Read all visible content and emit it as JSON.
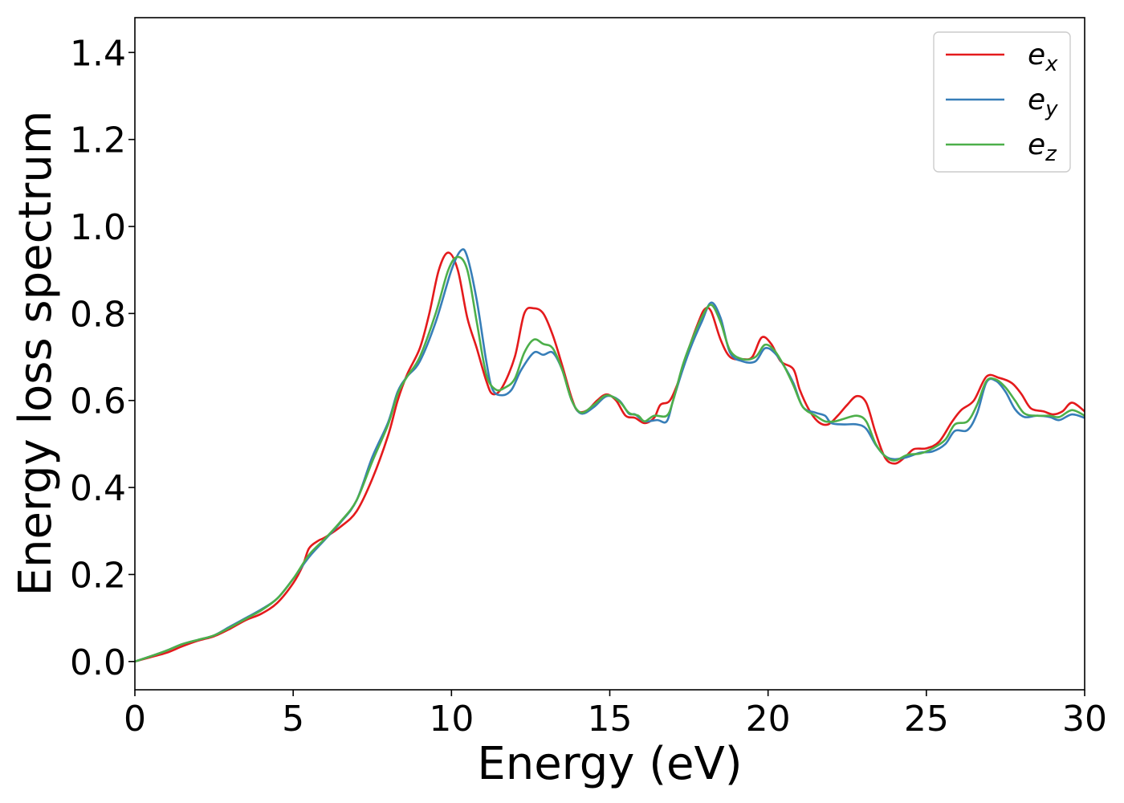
{
  "chart_data": {
    "type": "line",
    "title": "",
    "xlabel": "Energy (eV)",
    "ylabel": "Energy loss spectrum",
    "xlim": [
      0,
      30
    ],
    "ylim": [
      -0.065,
      1.48
    ],
    "xticks": [
      0,
      5,
      10,
      15,
      20,
      25,
      30
    ],
    "xtick_labels": [
      "0",
      "5",
      "10",
      "15",
      "20",
      "25",
      "30"
    ],
    "yticks": [
      0.0,
      0.2,
      0.4,
      0.6,
      0.8,
      1.0,
      1.2,
      1.4
    ],
    "ytick_labels": [
      "0.0",
      "0.2",
      "0.4",
      "0.6",
      "0.8",
      "1.0",
      "1.2",
      "1.4"
    ],
    "grid": false,
    "legend_position": "top-right",
    "series": [
      {
        "name": "e",
        "subscript": "x",
        "color": "#e41a1c",
        "points": [
          [
            0.0,
            0.0
          ],
          [
            0.5,
            0.01
          ],
          [
            1.0,
            0.02
          ],
          [
            1.5,
            0.035
          ],
          [
            2.0,
            0.048
          ],
          [
            2.5,
            0.058
          ],
          [
            3.0,
            0.075
          ],
          [
            3.5,
            0.095
          ],
          [
            4.0,
            0.11
          ],
          [
            4.5,
            0.135
          ],
          [
            5.0,
            0.18
          ],
          [
            5.3,
            0.22
          ],
          [
            5.5,
            0.26
          ],
          [
            5.8,
            0.278
          ],
          [
            6.0,
            0.285
          ],
          [
            6.5,
            0.31
          ],
          [
            7.0,
            0.345
          ],
          [
            7.5,
            0.42
          ],
          [
            8.0,
            0.52
          ],
          [
            8.3,
            0.6
          ],
          [
            8.6,
            0.66
          ],
          [
            9.0,
            0.72
          ],
          [
            9.3,
            0.8
          ],
          [
            9.6,
            0.9
          ],
          [
            9.9,
            0.94
          ],
          [
            10.2,
            0.9
          ],
          [
            10.5,
            0.79
          ],
          [
            10.8,
            0.72
          ],
          [
            11.1,
            0.645
          ],
          [
            11.3,
            0.615
          ],
          [
            11.6,
            0.63
          ],
          [
            12.0,
            0.7
          ],
          [
            12.3,
            0.8
          ],
          [
            12.6,
            0.812
          ],
          [
            12.9,
            0.8
          ],
          [
            13.2,
            0.75
          ],
          [
            13.5,
            0.68
          ],
          [
            13.8,
            0.605
          ],
          [
            14.0,
            0.575
          ],
          [
            14.3,
            0.578
          ],
          [
            14.6,
            0.6
          ],
          [
            14.9,
            0.614
          ],
          [
            15.2,
            0.6
          ],
          [
            15.5,
            0.565
          ],
          [
            15.8,
            0.56
          ],
          [
            16.1,
            0.548
          ],
          [
            16.4,
            0.56
          ],
          [
            16.6,
            0.59
          ],
          [
            16.9,
            0.6
          ],
          [
            17.2,
            0.65
          ],
          [
            17.5,
            0.72
          ],
          [
            17.8,
            0.78
          ],
          [
            18.0,
            0.81
          ],
          [
            18.2,
            0.805
          ],
          [
            18.5,
            0.74
          ],
          [
            18.8,
            0.7
          ],
          [
            19.2,
            0.695
          ],
          [
            19.5,
            0.7
          ],
          [
            19.8,
            0.745
          ],
          [
            20.1,
            0.73
          ],
          [
            20.4,
            0.69
          ],
          [
            20.8,
            0.672
          ],
          [
            21.0,
            0.625
          ],
          [
            21.3,
            0.578
          ],
          [
            21.6,
            0.55
          ],
          [
            21.9,
            0.545
          ],
          [
            22.2,
            0.565
          ],
          [
            22.5,
            0.59
          ],
          [
            22.8,
            0.61
          ],
          [
            23.1,
            0.595
          ],
          [
            23.4,
            0.525
          ],
          [
            23.7,
            0.468
          ],
          [
            24.0,
            0.455
          ],
          [
            24.3,
            0.468
          ],
          [
            24.6,
            0.488
          ],
          [
            25.0,
            0.49
          ],
          [
            25.4,
            0.505
          ],
          [
            25.8,
            0.55
          ],
          [
            26.1,
            0.578
          ],
          [
            26.5,
            0.6
          ],
          [
            26.9,
            0.655
          ],
          [
            27.3,
            0.652
          ],
          [
            27.7,
            0.64
          ],
          [
            28.0,
            0.615
          ],
          [
            28.3,
            0.582
          ],
          [
            28.7,
            0.575
          ],
          [
            29.0,
            0.568
          ],
          [
            29.3,
            0.575
          ],
          [
            29.6,
            0.595
          ],
          [
            30.0,
            0.575
          ]
        ]
      },
      {
        "name": "e",
        "subscript": "y",
        "color": "#377eb8",
        "points": [
          [
            0.0,
            0.0
          ],
          [
            0.5,
            0.012
          ],
          [
            1.0,
            0.025
          ],
          [
            1.5,
            0.04
          ],
          [
            2.0,
            0.05
          ],
          [
            2.5,
            0.06
          ],
          [
            3.0,
            0.08
          ],
          [
            3.5,
            0.1
          ],
          [
            4.0,
            0.12
          ],
          [
            4.5,
            0.145
          ],
          [
            5.0,
            0.19
          ],
          [
            5.5,
            0.24
          ],
          [
            6.0,
            0.28
          ],
          [
            6.5,
            0.32
          ],
          [
            7.0,
            0.37
          ],
          [
            7.5,
            0.47
          ],
          [
            8.0,
            0.55
          ],
          [
            8.3,
            0.62
          ],
          [
            8.6,
            0.655
          ],
          [
            9.0,
            0.69
          ],
          [
            9.5,
            0.78
          ],
          [
            10.0,
            0.9
          ],
          [
            10.3,
            0.945
          ],
          [
            10.5,
            0.93
          ],
          [
            10.8,
            0.83
          ],
          [
            11.1,
            0.69
          ],
          [
            11.3,
            0.625
          ],
          [
            11.6,
            0.612
          ],
          [
            11.9,
            0.625
          ],
          [
            12.2,
            0.67
          ],
          [
            12.6,
            0.71
          ],
          [
            12.9,
            0.705
          ],
          [
            13.2,
            0.71
          ],
          [
            13.5,
            0.67
          ],
          [
            13.8,
            0.6
          ],
          [
            14.1,
            0.57
          ],
          [
            14.5,
            0.585
          ],
          [
            14.9,
            0.61
          ],
          [
            15.3,
            0.6
          ],
          [
            15.6,
            0.57
          ],
          [
            15.8,
            0.568
          ],
          [
            16.1,
            0.552
          ],
          [
            16.5,
            0.555
          ],
          [
            16.8,
            0.552
          ],
          [
            17.0,
            0.6
          ],
          [
            17.3,
            0.67
          ],
          [
            17.6,
            0.73
          ],
          [
            17.9,
            0.78
          ],
          [
            18.2,
            0.825
          ],
          [
            18.5,
            0.79
          ],
          [
            18.8,
            0.71
          ],
          [
            19.2,
            0.69
          ],
          [
            19.6,
            0.69
          ],
          [
            19.9,
            0.72
          ],
          [
            20.2,
            0.71
          ],
          [
            20.5,
            0.68
          ],
          [
            20.8,
            0.64
          ],
          [
            21.1,
            0.585
          ],
          [
            21.5,
            0.572
          ],
          [
            21.8,
            0.565
          ],
          [
            22.0,
            0.548
          ],
          [
            22.4,
            0.545
          ],
          [
            22.8,
            0.545
          ],
          [
            23.1,
            0.535
          ],
          [
            23.4,
            0.498
          ],
          [
            23.7,
            0.472
          ],
          [
            24.0,
            0.465
          ],
          [
            24.4,
            0.47
          ],
          [
            24.8,
            0.48
          ],
          [
            25.2,
            0.483
          ],
          [
            25.6,
            0.5
          ],
          [
            25.9,
            0.53
          ],
          [
            26.3,
            0.532
          ],
          [
            26.6,
            0.57
          ],
          [
            26.9,
            0.642
          ],
          [
            27.2,
            0.645
          ],
          [
            27.5,
            0.62
          ],
          [
            27.8,
            0.58
          ],
          [
            28.1,
            0.562
          ],
          [
            28.5,
            0.565
          ],
          [
            28.9,
            0.562
          ],
          [
            29.2,
            0.555
          ],
          [
            29.6,
            0.568
          ],
          [
            30.0,
            0.56
          ]
        ]
      },
      {
        "name": "e",
        "subscript": "z",
        "color": "#4daf4a",
        "points": [
          [
            0.0,
            0.0
          ],
          [
            0.5,
            0.012
          ],
          [
            1.0,
            0.025
          ],
          [
            1.5,
            0.04
          ],
          [
            2.0,
            0.05
          ],
          [
            2.5,
            0.06
          ],
          [
            3.0,
            0.078
          ],
          [
            3.5,
            0.098
          ],
          [
            4.0,
            0.118
          ],
          [
            4.5,
            0.145
          ],
          [
            5.0,
            0.19
          ],
          [
            5.5,
            0.245
          ],
          [
            6.0,
            0.282
          ],
          [
            6.5,
            0.322
          ],
          [
            7.0,
            0.37
          ],
          [
            7.5,
            0.46
          ],
          [
            8.0,
            0.545
          ],
          [
            8.3,
            0.615
          ],
          [
            8.6,
            0.655
          ],
          [
            9.0,
            0.7
          ],
          [
            9.5,
            0.8
          ],
          [
            9.9,
            0.9
          ],
          [
            10.2,
            0.93
          ],
          [
            10.5,
            0.9
          ],
          [
            10.8,
            0.78
          ],
          [
            11.1,
            0.66
          ],
          [
            11.4,
            0.625
          ],
          [
            11.7,
            0.63
          ],
          [
            12.0,
            0.65
          ],
          [
            12.3,
            0.71
          ],
          [
            12.6,
            0.74
          ],
          [
            12.9,
            0.73
          ],
          [
            13.2,
            0.72
          ],
          [
            13.5,
            0.67
          ],
          [
            13.8,
            0.6
          ],
          [
            14.1,
            0.572
          ],
          [
            14.5,
            0.59
          ],
          [
            14.9,
            0.612
          ],
          [
            15.3,
            0.598
          ],
          [
            15.6,
            0.572
          ],
          [
            15.9,
            0.565
          ],
          [
            16.1,
            0.552
          ],
          [
            16.4,
            0.565
          ],
          [
            16.8,
            0.565
          ],
          [
            17.0,
            0.6
          ],
          [
            17.3,
            0.68
          ],
          [
            17.6,
            0.74
          ],
          [
            17.9,
            0.79
          ],
          [
            18.2,
            0.82
          ],
          [
            18.5,
            0.78
          ],
          [
            18.8,
            0.715
          ],
          [
            19.2,
            0.695
          ],
          [
            19.6,
            0.7
          ],
          [
            19.9,
            0.728
          ],
          [
            20.2,
            0.715
          ],
          [
            20.5,
            0.68
          ],
          [
            20.8,
            0.635
          ],
          [
            21.1,
            0.585
          ],
          [
            21.5,
            0.565
          ],
          [
            21.8,
            0.552
          ],
          [
            22.1,
            0.552
          ],
          [
            22.4,
            0.558
          ],
          [
            22.8,
            0.565
          ],
          [
            23.1,
            0.552
          ],
          [
            23.4,
            0.5
          ],
          [
            23.7,
            0.472
          ],
          [
            24.0,
            0.462
          ],
          [
            24.4,
            0.475
          ],
          [
            24.8,
            0.478
          ],
          [
            25.2,
            0.49
          ],
          [
            25.6,
            0.51
          ],
          [
            25.9,
            0.545
          ],
          [
            26.3,
            0.552
          ],
          [
            26.6,
            0.59
          ],
          [
            26.9,
            0.645
          ],
          [
            27.2,
            0.648
          ],
          [
            27.5,
            0.63
          ],
          [
            27.8,
            0.6
          ],
          [
            28.1,
            0.57
          ],
          [
            28.5,
            0.565
          ],
          [
            28.9,
            0.565
          ],
          [
            29.2,
            0.562
          ],
          [
            29.6,
            0.578
          ],
          [
            30.0,
            0.565
          ]
        ]
      }
    ]
  }
}
